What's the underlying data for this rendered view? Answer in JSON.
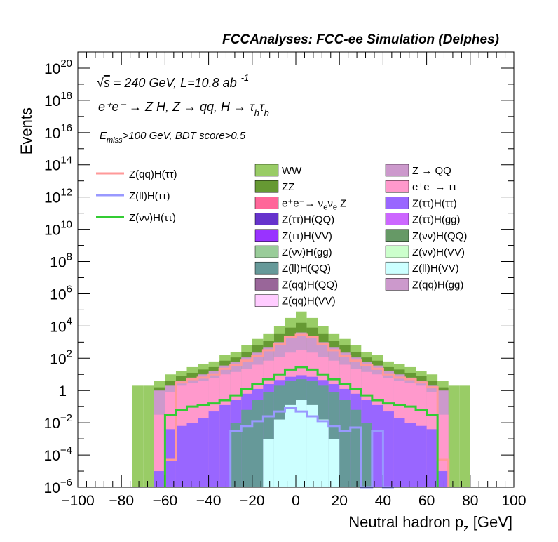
{
  "chart_data": {
    "type": "histogram",
    "title": "FCCAnalyses: FCC-ee Simulation (Delphes)",
    "annotations": {
      "energy_prefix": "√",
      "energy_s": "s",
      "energy_text": " = 240 GeV, L=10.8 ab",
      "energy_sup": "-1",
      "process_text": "e⁺e⁻ → Z H, Z → qq, H → τ",
      "process_sub1": "h",
      "process_tau2": "τ",
      "process_sub2": "h",
      "cut_E": "E",
      "cut_sub": "miss",
      "cut_text": ">100 GeV, BDT score>0.5"
    },
    "xlabel": "Neutral hadron p",
    "xlabel_sub": "z",
    "xlabel_unit": " [GeV]",
    "ylabel": "Events",
    "xlim": [
      -100,
      100
    ],
    "ylim_log10": [
      -6,
      21
    ],
    "log_y": true,
    "bin_width": 5,
    "x_ticks": [
      "−100",
      "−80",
      "−60",
      "−40",
      "−20",
      "0",
      "20",
      "40",
      "60",
      "80",
      "100"
    ],
    "y_ticks": [
      {
        "base": "10",
        "exp": "20",
        "log": 20
      },
      {
        "base": "10",
        "exp": "18",
        "log": 18
      },
      {
        "base": "10",
        "exp": "16",
        "log": 16
      },
      {
        "base": "10",
        "exp": "14",
        "log": 14
      },
      {
        "base": "10",
        "exp": "12",
        "log": 12
      },
      {
        "base": "10",
        "exp": "10",
        "log": 10
      },
      {
        "base": "10",
        "exp": "8",
        "log": 8
      },
      {
        "base": "10",
        "exp": "6",
        "log": 6
      },
      {
        "base": "10",
        "exp": "4",
        "log": 4
      },
      {
        "base": "10",
        "exp": "2",
        "log": 2
      },
      {
        "base": "1",
        "exp": "",
        "log": 0
      },
      {
        "base": "10",
        "exp": "−2",
        "log": -2
      },
      {
        "base": "10",
        "exp": "−4",
        "log": -4
      },
      {
        "base": "10",
        "exp": "−6",
        "log": -6
      }
    ],
    "stack_edges_x": [
      -75,
      -70,
      -65,
      -60,
      -55,
      -50,
      -45,
      -40,
      -35,
      -30,
      -25,
      -20,
      -15,
      -10,
      -5,
      0,
      5,
      10,
      15,
      20,
      25,
      30,
      35,
      40,
      45,
      50,
      55,
      60,
      65,
      70,
      75,
      80
    ],
    "stack_layers_log10": [
      {
        "name": "WW",
        "color": "#99cc66",
        "values": [
          0.3,
          0.3,
          0.6,
          1.0,
          1.2,
          1.45,
          1.65,
          1.8,
          2.2,
          2.4,
          2.8,
          3.2,
          3.5,
          4.0,
          4.5,
          4.9,
          4.5,
          4.0,
          3.5,
          3.2,
          2.8,
          2.4,
          2.2,
          1.8,
          1.65,
          1.45,
          1.2,
          1.0,
          0.6,
          0.3,
          0.3
        ]
      },
      {
        "name": "ZZ",
        "color": "#669933",
        "values": [
          -6,
          -6,
          0.2,
          0.6,
          0.9,
          1.1,
          1.3,
          1.45,
          1.85,
          2.05,
          2.4,
          2.8,
          3.1,
          3.5,
          3.9,
          4.2,
          3.9,
          3.5,
          3.1,
          2.8,
          2.4,
          2.05,
          1.85,
          1.45,
          1.3,
          1.1,
          0.9,
          0.6,
          0.2,
          -6,
          -6
        ]
      },
      {
        "name": "Z → QQ",
        "color": "#cc99cc",
        "values": [
          -6,
          -6,
          0.0,
          0.3,
          0.6,
          0.8,
          1.0,
          1.2,
          1.55,
          1.75,
          2.05,
          2.35,
          2.7,
          3.0,
          3.35,
          3.6,
          3.35,
          3.0,
          2.7,
          2.35,
          2.05,
          1.75,
          1.55,
          1.2,
          1.0,
          0.8,
          0.6,
          0.3,
          0.0,
          -6,
          -6
        ]
      },
      {
        "name": "e⁺e⁻→ ττ",
        "color": "#ff99cc",
        "values": [
          -6,
          -6,
          -1.5,
          -0.1,
          0.3,
          0.45,
          0.6,
          0.75,
          1.0,
          1.15,
          1.35,
          1.6,
          1.85,
          2.1,
          2.35,
          2.5,
          2.35,
          2.1,
          1.85,
          1.6,
          1.35,
          1.15,
          1.0,
          0.75,
          0.6,
          0.45,
          0.3,
          -0.1,
          -1.5,
          -6,
          -6
        ]
      },
      {
        "name": "Z(ττ)H(ττ)",
        "color": "#9966ff",
        "values": [
          -6,
          -6,
          -5.0,
          -2.4,
          -2.2,
          -2.0,
          -1.7,
          -1.3,
          -0.9,
          -0.6,
          -0.2,
          0.1,
          0.4,
          0.65,
          0.85,
          0.95,
          0.85,
          0.65,
          0.4,
          0.1,
          -0.2,
          -0.6,
          -0.9,
          -1.3,
          -1.7,
          -2.0,
          -2.2,
          -2.4,
          -5.0,
          -6,
          -6
        ]
      },
      {
        "name": "Z(ll)H(QQ)",
        "color": "#669999",
        "values": [
          -6,
          -6,
          -6,
          -6,
          -6,
          -6,
          -6,
          -6,
          -6,
          -2.0,
          -1.2,
          -0.6,
          -0.1,
          0.3,
          0.6,
          0.7,
          0.6,
          0.3,
          -0.1,
          -0.6,
          -1.2,
          -2.0,
          -6,
          -6,
          -6,
          -6,
          -6,
          -6,
          -6,
          -6,
          -6
        ]
      },
      {
        "name": "Z(ll)H(VV)",
        "color": "#ccffff",
        "values": [
          -6,
          -6,
          -6,
          -6,
          -6,
          -6,
          -6,
          -6,
          -6,
          -6,
          -6,
          -6,
          -3.0,
          -1.8,
          -0.9,
          -0.6,
          -0.9,
          -1.8,
          -3.0,
          -6,
          -6,
          -6,
          -6,
          -6,
          -6,
          -6,
          -6,
          -6,
          -6,
          -6,
          -6
        ]
      }
    ],
    "overlay_series": [
      {
        "name": "Z(qq)H(ττ)",
        "color": "#ff9999",
        "edges_x": [
          -60,
          -55,
          -50,
          -45,
          -40,
          -35,
          -30,
          -25,
          -20,
          -15,
          -10,
          -5,
          0,
          5,
          10,
          15,
          20,
          25,
          30,
          35,
          40,
          45,
          50,
          55,
          60,
          65,
          70
        ],
        "values_log10": [
          -4.3,
          0.5,
          0.7,
          0.8,
          1.0,
          1.35,
          1.6,
          1.85,
          2.15,
          2.5,
          2.9,
          3.3,
          3.45,
          3.3,
          2.9,
          2.5,
          2.15,
          1.85,
          1.6,
          1.35,
          1.0,
          0.8,
          0.7,
          0.5,
          0.2,
          -4.3
        ]
      },
      {
        "name": "Z(ll)H(ττ)",
        "color": "#9999ff",
        "edges_x": [
          -30,
          -25,
          -20,
          -15,
          -10,
          -5,
          0,
          5,
          10,
          15,
          20,
          25,
          30,
          35,
          40,
          45
        ],
        "values_log10": [
          -2.5,
          -2.2,
          -1.9,
          -1.6,
          -1.3,
          -1.1,
          -1.3,
          -1.6,
          -1.9,
          -2.2,
          -2.5,
          -2.3,
          -6,
          -2.5,
          -6
        ]
      },
      {
        "name": "Z(νν)H(ττ)",
        "color": "#33cc33",
        "edges_x": [
          -60,
          -55,
          -50,
          -45,
          -40,
          -35,
          -30,
          -25,
          -20,
          -15,
          -10,
          -5,
          0,
          5,
          10,
          15,
          20,
          25,
          30,
          35,
          40,
          45,
          50,
          55,
          60,
          65
        ],
        "values_log10": [
          -1.5,
          -1.2,
          -1.0,
          -0.9,
          -0.8,
          -0.6,
          -0.3,
          0.1,
          0.4,
          0.7,
          1.0,
          1.3,
          1.45,
          1.3,
          1.0,
          0.7,
          0.4,
          0.1,
          -0.3,
          -0.6,
          -0.8,
          -0.9,
          -1.0,
          -1.2,
          -1.5
        ]
      }
    ],
    "legend_left": [
      {
        "name": "Z(qq)H(ττ)",
        "color": "#ff9999"
      },
      {
        "name": "Z(ll)H(ττ)",
        "color": "#9999ff"
      },
      {
        "name": "Z(νν)H(ττ)",
        "color": "#33cc33"
      }
    ],
    "legend_col1": [
      {
        "name": "WW",
        "color": "#99cc66"
      },
      {
        "name": "ZZ",
        "color": "#669933"
      },
      {
        "name": "e⁺e⁻→ ν",
        "sub": "e",
        "name2": "ν",
        "sub2": "e",
        "tail": " Z",
        "color": "#ff6699"
      },
      {
        "name": "Z(ττ)H(QQ)",
        "color": "#6633cc"
      },
      {
        "name": "Z(ττ)H(VV)",
        "color": "#9933ff"
      },
      {
        "name": "Z(νν)H(gg)",
        "color": "#99cc99"
      },
      {
        "name": "Z(ll)H(QQ)",
        "color": "#669999"
      },
      {
        "name": "Z(qq)H(QQ)",
        "color": "#996699"
      },
      {
        "name": "Z(qq)H(VV)",
        "color": "#ffccff"
      }
    ],
    "legend_col2": [
      {
        "name": "Z → QQ",
        "color": "#cc99cc"
      },
      {
        "name": "e⁺e⁻→ ττ",
        "color": "#ff99cc"
      },
      {
        "name": "Z(ττ)H(ττ)",
        "color": "#9966ff"
      },
      {
        "name": "Z(ττ)H(gg)",
        "color": "#cc66ff"
      },
      {
        "name": "Z(νν)H(QQ)",
        "color": "#669966"
      },
      {
        "name": "Z(νν)H(VV)",
        "color": "#ccffcc"
      },
      {
        "name": "Z(ll)H(VV)",
        "color": "#ccffff"
      },
      {
        "name": "Z(qq)H(gg)",
        "color": "#cc99cc"
      }
    ]
  }
}
